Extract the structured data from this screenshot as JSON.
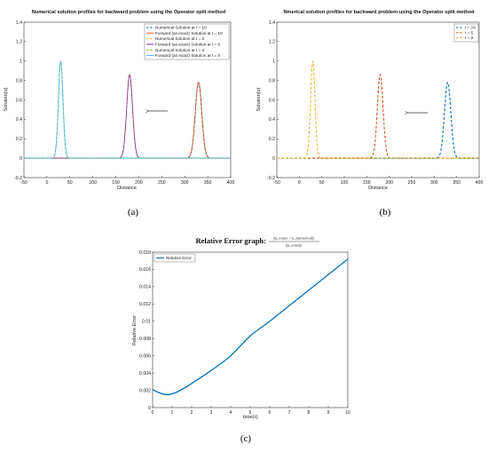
{
  "chart_data": [
    {
      "type": "line",
      "title": "Numerical solution profiles for backward problem using the Operator split method",
      "xlabel": "Distance",
      "ylabel": "Solution(u)",
      "xlim": [
        -50,
        400
      ],
      "ylim": [
        -0.2,
        1.4
      ],
      "xticks": [
        "-50",
        "0",
        "50",
        "100",
        "150",
        "200",
        "250",
        "300",
        "350",
        "400"
      ],
      "yticks": [
        "-0.2",
        "0",
        "0.2",
        "0.4",
        "0.6",
        "0.8",
        "1",
        "1.2",
        "1.4"
      ],
      "grid": false,
      "legend_position": "top-right",
      "annotation": "arrow pointing left",
      "series": [
        {
          "name": "Numerical Solution at t = 10",
          "color": "#0072BD",
          "dash": true,
          "peak_x": 330,
          "peak_y": 0.78,
          "width": 10
        },
        {
          "name": "Forward (as exact) Solution at t = 10",
          "color": "#D95319",
          "dash": false,
          "peak_x": 330,
          "peak_y": 0.78,
          "width": 10
        },
        {
          "name": "Numerical Solution at t = 5",
          "color": "#EDB120",
          "dash": true,
          "peak_x": 180,
          "peak_y": 0.86,
          "width": 9
        },
        {
          "name": "Forward (as exact) Solution at t = 5",
          "color": "#7E2F8E",
          "dash": false,
          "peak_x": 180,
          "peak_y": 0.86,
          "width": 9
        },
        {
          "name": "Numerical Solution at t = 0",
          "color": "#77AC30",
          "dash": true,
          "peak_x": 30,
          "peak_y": 1.0,
          "width": 7
        },
        {
          "name": "Forward (as exact) Solution at t = 0",
          "color": "#4DBEEE",
          "dash": false,
          "peak_x": 30,
          "peak_y": 1.0,
          "width": 7
        }
      ]
    },
    {
      "type": "line",
      "title": "Nmerical solution profiles for backward problem using the Operator split method",
      "xlabel": "Distance",
      "ylabel": "Solution(u)",
      "xlim": [
        -50,
        400
      ],
      "ylim": [
        -0.2,
        1.4
      ],
      "xticks": [
        "-50",
        "0",
        "50",
        "100",
        "150",
        "200",
        "250",
        "300",
        "350",
        "400"
      ],
      "yticks": [
        "-0.2",
        "0",
        "0.2",
        "0.4",
        "0.6",
        "0.8",
        "1",
        "1.2",
        "1.4"
      ],
      "grid": false,
      "legend_position": "top-right",
      "annotation": "arrow pointing left",
      "series": [
        {
          "name": "t = 10",
          "color": "#0072BD",
          "dash": true,
          "peak_x": 330,
          "peak_y": 0.78,
          "width": 10
        },
        {
          "name": "t = 5",
          "color": "#D95319",
          "dash": true,
          "peak_x": 180,
          "peak_y": 0.86,
          "width": 9
        },
        {
          "name": "t = 0",
          "color": "#EDB120",
          "dash": true,
          "peak_x": 30,
          "peak_y": 1.0,
          "width": 7
        }
      ]
    },
    {
      "type": "line",
      "title": "Relative Error graph:",
      "title_formula_numerator": "||u_exact − u_numerical||",
      "title_formula_denominator": "||u_exact||",
      "xlabel": "time(t)",
      "ylabel": "Relative Error",
      "xlim": [
        0,
        10
      ],
      "ylim": [
        0,
        0.018
      ],
      "xticks": [
        "0",
        "1",
        "2",
        "3",
        "4",
        "5",
        "6",
        "7",
        "8",
        "9",
        "10"
      ],
      "yticks": [
        "0",
        "0.002",
        "0.004",
        "0.006",
        "0.008",
        "0.01",
        "0.012",
        "0.014",
        "0.016",
        "0.018"
      ],
      "grid": false,
      "legend_position": "top-left",
      "series": [
        {
          "name": "Relative Error",
          "color": "#0072BD",
          "x": [
            0,
            0.25,
            0.5,
            0.75,
            1.0,
            1.25,
            1.5,
            2,
            3,
            4,
            5,
            6,
            7,
            8,
            9,
            10
          ],
          "values": [
            0.0021,
            0.0018,
            0.0016,
            0.0015,
            0.0016,
            0.0018,
            0.0021,
            0.0028,
            0.0043,
            0.006,
            0.0083,
            0.01,
            0.0118,
            0.0136,
            0.0154,
            0.0172
          ]
        }
      ]
    }
  ],
  "captions": [
    "(a)",
    "(b)",
    "(c)"
  ]
}
